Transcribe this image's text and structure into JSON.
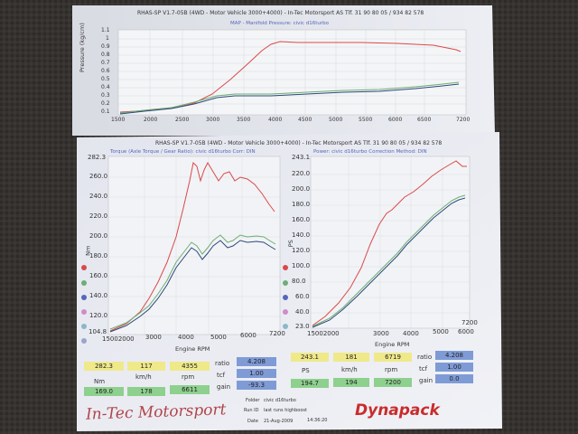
{
  "top_sheet": {
    "header": "RHAS-SP V1.7-05B   (4WD - Motor Vehicle 3000+4000) - In-Tec Motorsport AS Tlf. 31 90 80 05 / 934 82 578",
    "title": "MAP - Manifold Pressure: civic d16turbo",
    "ylabel": "Pressure (kg/cm)",
    "yticks": [
      "1.1",
      "1",
      "0.9",
      "0.8",
      "0.7",
      "0.6",
      "0.5",
      "0.4",
      "0.3",
      "0.2",
      "0.1"
    ],
    "xticks": [
      "1500",
      "2000",
      "2500",
      "3000",
      "3500",
      "4000",
      "4500",
      "5000",
      "5500",
      "6000",
      "6500",
      "7200"
    ]
  },
  "bottom_sheet": {
    "header": "RHAS-SP V1.7-05B   (4WD - Motor Vehicle 3000+4000) - In-Tec Motorsport AS Tlf. 31 90 80 05 / 934 82 578",
    "torque_title": "Torque (Axle Torque / Gear Ratio): civic d16turbo   Corr: DIN",
    "power_title": "Power: civic d16turbo   Correction Method: DIN",
    "torque_yunit": "Nm",
    "power_yunit": "PS",
    "torque_yticks": [
      "282.3",
      "260.0",
      "240.0",
      "220.0",
      "200.0",
      "180.0",
      "160.0",
      "140.0",
      "120.0",
      "104.8"
    ],
    "power_yticks": [
      "243.1",
      "220.0",
      "200.0",
      "180.0",
      "160.0",
      "140.0",
      "120.0",
      "100.0",
      "80.0",
      "60.0",
      "40.0",
      "23.0"
    ],
    "torque_xticks": [
      "15002000",
      "3000",
      "4000",
      "5000",
      "6000",
      "7200"
    ],
    "power_xticks": [
      "15002000",
      "3000",
      "4000",
      "5000",
      "6000",
      "7200"
    ],
    "xlabel": "Engine RPM"
  },
  "results_torque": {
    "row1": [
      "282.3",
      "117",
      "4355"
    ],
    "units": [
      "Nm",
      "km/h",
      "rpm"
    ],
    "row2": [
      "169.0",
      "178",
      "6611"
    ],
    "side_labels": [
      "ratio",
      "tcf",
      "gain"
    ],
    "side_values": [
      "4.208",
      "1.00",
      "-93.3"
    ]
  },
  "results_power": {
    "row1": [
      "243.1",
      "181",
      "6719"
    ],
    "units": [
      "PS",
      "km/h",
      "rpm"
    ],
    "row2": [
      "194.7",
      "194",
      "7200"
    ],
    "side_labels": [
      "ratio",
      "tcf",
      "gain"
    ],
    "side_values": [
      "4.208",
      "1.00",
      "0.0"
    ]
  },
  "footer": {
    "brand": "In-Tec Motorsport",
    "logo": "Dynapack",
    "folder_label": "Folder",
    "folder_value": "civic d16turbo",
    "run_label": "Run ID",
    "run_value": "last runs highboost",
    "date_label": "Date",
    "date_value": "21-Aug-2009",
    "time_value": "14:36:20"
  },
  "colors": {
    "red_curve": "#d84a4a",
    "green_curve": "#6cae74",
    "blue_curve": "#2c4a7a",
    "title_text": "#5566bb"
  }
}
